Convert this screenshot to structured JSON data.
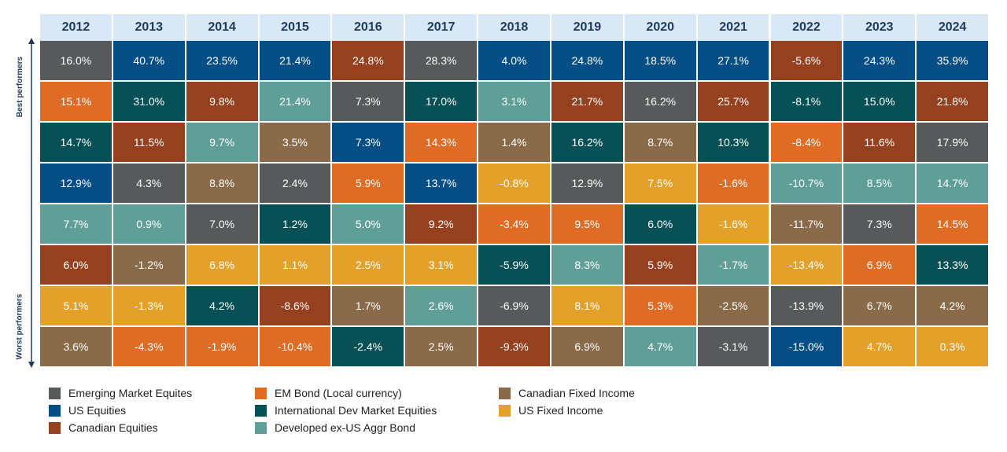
{
  "chart_data": {
    "type": "table",
    "title": "",
    "axis_labels": {
      "top": "Best performers",
      "bottom": "Worst performers"
    },
    "years": [
      "2012",
      "2013",
      "2014",
      "2015",
      "2016",
      "2017",
      "2018",
      "2019",
      "2020",
      "2021",
      "2022",
      "2023",
      "2024"
    ],
    "asset_classes": {
      "em_eq": {
        "label": "Emerging Market Equites",
        "color": "#58595b"
      },
      "us_eq": {
        "label": "US Equities",
        "color": "#054f86"
      },
      "ca_eq": {
        "label": "Canadian Equities",
        "color": "#95401e"
      },
      "em_bond": {
        "label": "EM Bond (Local currency)",
        "color": "#de6c25"
      },
      "intl_eq": {
        "label": "International Dev Market Equities",
        "color": "#075055"
      },
      "dev_bond": {
        "label": "Developed ex-US Aggr Bond",
        "color": "#5f9f98"
      },
      "ca_fi": {
        "label": "Canadian Fixed Income",
        "color": "#8a6b49"
      },
      "us_fi": {
        "label": "US Fixed Income",
        "color": "#e4a129"
      }
    },
    "legend_order": [
      [
        "em_eq",
        "us_eq",
        "ca_eq"
      ],
      [
        "em_bond",
        "intl_eq",
        "dev_bond"
      ],
      [
        "ca_fi",
        "us_fi"
      ]
    ],
    "columns": [
      {
        "year": "2012",
        "cells": [
          {
            "asset": "em_eq",
            "value": "16.0%"
          },
          {
            "asset": "em_bond",
            "value": "15.1%"
          },
          {
            "asset": "intl_eq",
            "value": "14.7%"
          },
          {
            "asset": "us_eq",
            "value": "12.9%"
          },
          {
            "asset": "dev_bond",
            "value": "7.7%"
          },
          {
            "asset": "ca_eq",
            "value": "6.0%"
          },
          {
            "asset": "us_fi",
            "value": "5.1%"
          },
          {
            "asset": "ca_fi",
            "value": "3.6%"
          }
        ]
      },
      {
        "year": "2013",
        "cells": [
          {
            "asset": "us_eq",
            "value": "40.7%"
          },
          {
            "asset": "intl_eq",
            "value": "31.0%"
          },
          {
            "asset": "ca_eq",
            "value": "11.5%"
          },
          {
            "asset": "em_eq",
            "value": "4.3%"
          },
          {
            "asset": "dev_bond",
            "value": "0.9%"
          },
          {
            "asset": "ca_fi",
            "value": "-1.2%"
          },
          {
            "asset": "us_fi",
            "value": "-1.3%"
          },
          {
            "asset": "em_bond",
            "value": "-4.3%"
          }
        ]
      },
      {
        "year": "2014",
        "cells": [
          {
            "asset": "us_eq",
            "value": "23.5%"
          },
          {
            "asset": "ca_eq",
            "value": "9.8%"
          },
          {
            "asset": "dev_bond",
            "value": "9.7%"
          },
          {
            "asset": "ca_fi",
            "value": "8.8%"
          },
          {
            "asset": "em_eq",
            "value": "7.0%"
          },
          {
            "asset": "us_fi",
            "value": "6.8%"
          },
          {
            "asset": "intl_eq",
            "value": "4.2%"
          },
          {
            "asset": "em_bond",
            "value": "-1.9%"
          }
        ]
      },
      {
        "year": "2015",
        "cells": [
          {
            "asset": "us_eq",
            "value": "21.4%"
          },
          {
            "asset": "dev_bond",
            "value": "21.4%"
          },
          {
            "asset": "ca_fi",
            "value": "3.5%"
          },
          {
            "asset": "em_eq",
            "value": "2.4%"
          },
          {
            "asset": "intl_eq",
            "value": "1.2%"
          },
          {
            "asset": "us_fi",
            "value": "1.1%"
          },
          {
            "asset": "ca_eq",
            "value": "-8.6%"
          },
          {
            "asset": "em_bond",
            "value": "-10.4%"
          }
        ]
      },
      {
        "year": "2016",
        "cells": [
          {
            "asset": "ca_eq",
            "value": "24.8%"
          },
          {
            "asset": "em_eq",
            "value": "7.3%"
          },
          {
            "asset": "us_eq",
            "value": "7.3%"
          },
          {
            "asset": "em_bond",
            "value": "5.9%"
          },
          {
            "asset": "dev_bond",
            "value": "5.0%"
          },
          {
            "asset": "us_fi",
            "value": "2.5%"
          },
          {
            "asset": "ca_fi",
            "value": "1.7%"
          },
          {
            "asset": "intl_eq",
            "value": "-2.4%"
          }
        ]
      },
      {
        "year": "2017",
        "cells": [
          {
            "asset": "em_eq",
            "value": "28.3%"
          },
          {
            "asset": "intl_eq",
            "value": "17.0%"
          },
          {
            "asset": "em_bond",
            "value": "14.3%"
          },
          {
            "asset": "us_eq",
            "value": "13.7%"
          },
          {
            "asset": "ca_eq",
            "value": "9.2%"
          },
          {
            "asset": "us_fi",
            "value": "3.1%"
          },
          {
            "asset": "dev_bond",
            "value": "2.6%"
          },
          {
            "asset": "ca_fi",
            "value": "2.5%"
          }
        ]
      },
      {
        "year": "2018",
        "cells": [
          {
            "asset": "us_eq",
            "value": "4.0%"
          },
          {
            "asset": "dev_bond",
            "value": "3.1%"
          },
          {
            "asset": "ca_fi",
            "value": "1.4%"
          },
          {
            "asset": "us_fi",
            "value": "-0.8%"
          },
          {
            "asset": "em_bond",
            "value": "-3.4%"
          },
          {
            "asset": "intl_eq",
            "value": "-5.9%"
          },
          {
            "asset": "em_eq",
            "value": "-6.9%"
          },
          {
            "asset": "ca_eq",
            "value": "-9.3%"
          }
        ]
      },
      {
        "year": "2019",
        "cells": [
          {
            "asset": "us_eq",
            "value": "24.8%"
          },
          {
            "asset": "ca_eq",
            "value": "21.7%"
          },
          {
            "asset": "intl_eq",
            "value": "16.2%"
          },
          {
            "asset": "em_eq",
            "value": "12.9%"
          },
          {
            "asset": "em_bond",
            "value": "9.5%"
          },
          {
            "asset": "dev_bond",
            "value": "8.3%"
          },
          {
            "asset": "us_fi",
            "value": "8.1%"
          },
          {
            "asset": "ca_fi",
            "value": "6.9%"
          }
        ]
      },
      {
        "year": "2020",
        "cells": [
          {
            "asset": "us_eq",
            "value": "18.5%"
          },
          {
            "asset": "em_eq",
            "value": "16.2%"
          },
          {
            "asset": "ca_fi",
            "value": "8.7%"
          },
          {
            "asset": "us_fi",
            "value": "7.5%"
          },
          {
            "asset": "intl_eq",
            "value": "6.0%"
          },
          {
            "asset": "ca_eq",
            "value": "5.9%"
          },
          {
            "asset": "em_bond",
            "value": "5.3%"
          },
          {
            "asset": "dev_bond",
            "value": "4.7%"
          }
        ]
      },
      {
        "year": "2021",
        "cells": [
          {
            "asset": "us_eq",
            "value": "27.1%"
          },
          {
            "asset": "ca_eq",
            "value": "25.7%"
          },
          {
            "asset": "intl_eq",
            "value": "10.3%"
          },
          {
            "asset": "em_bond",
            "value": "-1.6%"
          },
          {
            "asset": "us_fi",
            "value": "-1.6%"
          },
          {
            "asset": "dev_bond",
            "value": "-1.7%"
          },
          {
            "asset": "ca_fi",
            "value": "-2.5%"
          },
          {
            "asset": "em_eq",
            "value": "-3.1%"
          }
        ]
      },
      {
        "year": "2022",
        "cells": [
          {
            "asset": "ca_eq",
            "value": "-5.6%"
          },
          {
            "asset": "intl_eq",
            "value": "-8.1%"
          },
          {
            "asset": "em_bond",
            "value": "-8.4%"
          },
          {
            "asset": "dev_bond",
            "value": "-10.7%"
          },
          {
            "asset": "ca_fi",
            "value": "-11.7%"
          },
          {
            "asset": "us_fi",
            "value": "-13.4%"
          },
          {
            "asset": "em_eq",
            "value": "-13.9%"
          },
          {
            "asset": "us_eq",
            "value": "-15.0%"
          }
        ]
      },
      {
        "year": "2023",
        "cells": [
          {
            "asset": "us_eq",
            "value": "24.3%"
          },
          {
            "asset": "intl_eq",
            "value": "15.0%"
          },
          {
            "asset": "ca_eq",
            "value": "11.6%"
          },
          {
            "asset": "dev_bond",
            "value": "8.5%"
          },
          {
            "asset": "em_eq",
            "value": "7.3%"
          },
          {
            "asset": "em_bond",
            "value": "6.9%"
          },
          {
            "asset": "ca_fi",
            "value": "6.7%"
          },
          {
            "asset": "us_fi",
            "value": "4.7%"
          }
        ]
      },
      {
        "year": "2024",
        "cells": [
          {
            "asset": "us_eq",
            "value": "35.9%"
          },
          {
            "asset": "ca_eq",
            "value": "21.8%"
          },
          {
            "asset": "em_eq",
            "value": "17.9%"
          },
          {
            "asset": "dev_bond",
            "value": "14.7%"
          },
          {
            "asset": "em_bond",
            "value": "14.5%"
          },
          {
            "asset": "intl_eq",
            "value": "13.3%"
          },
          {
            "asset": "ca_fi",
            "value": "4.2%"
          },
          {
            "asset": "us_fi",
            "value": "0.3%"
          }
        ]
      }
    ]
  }
}
